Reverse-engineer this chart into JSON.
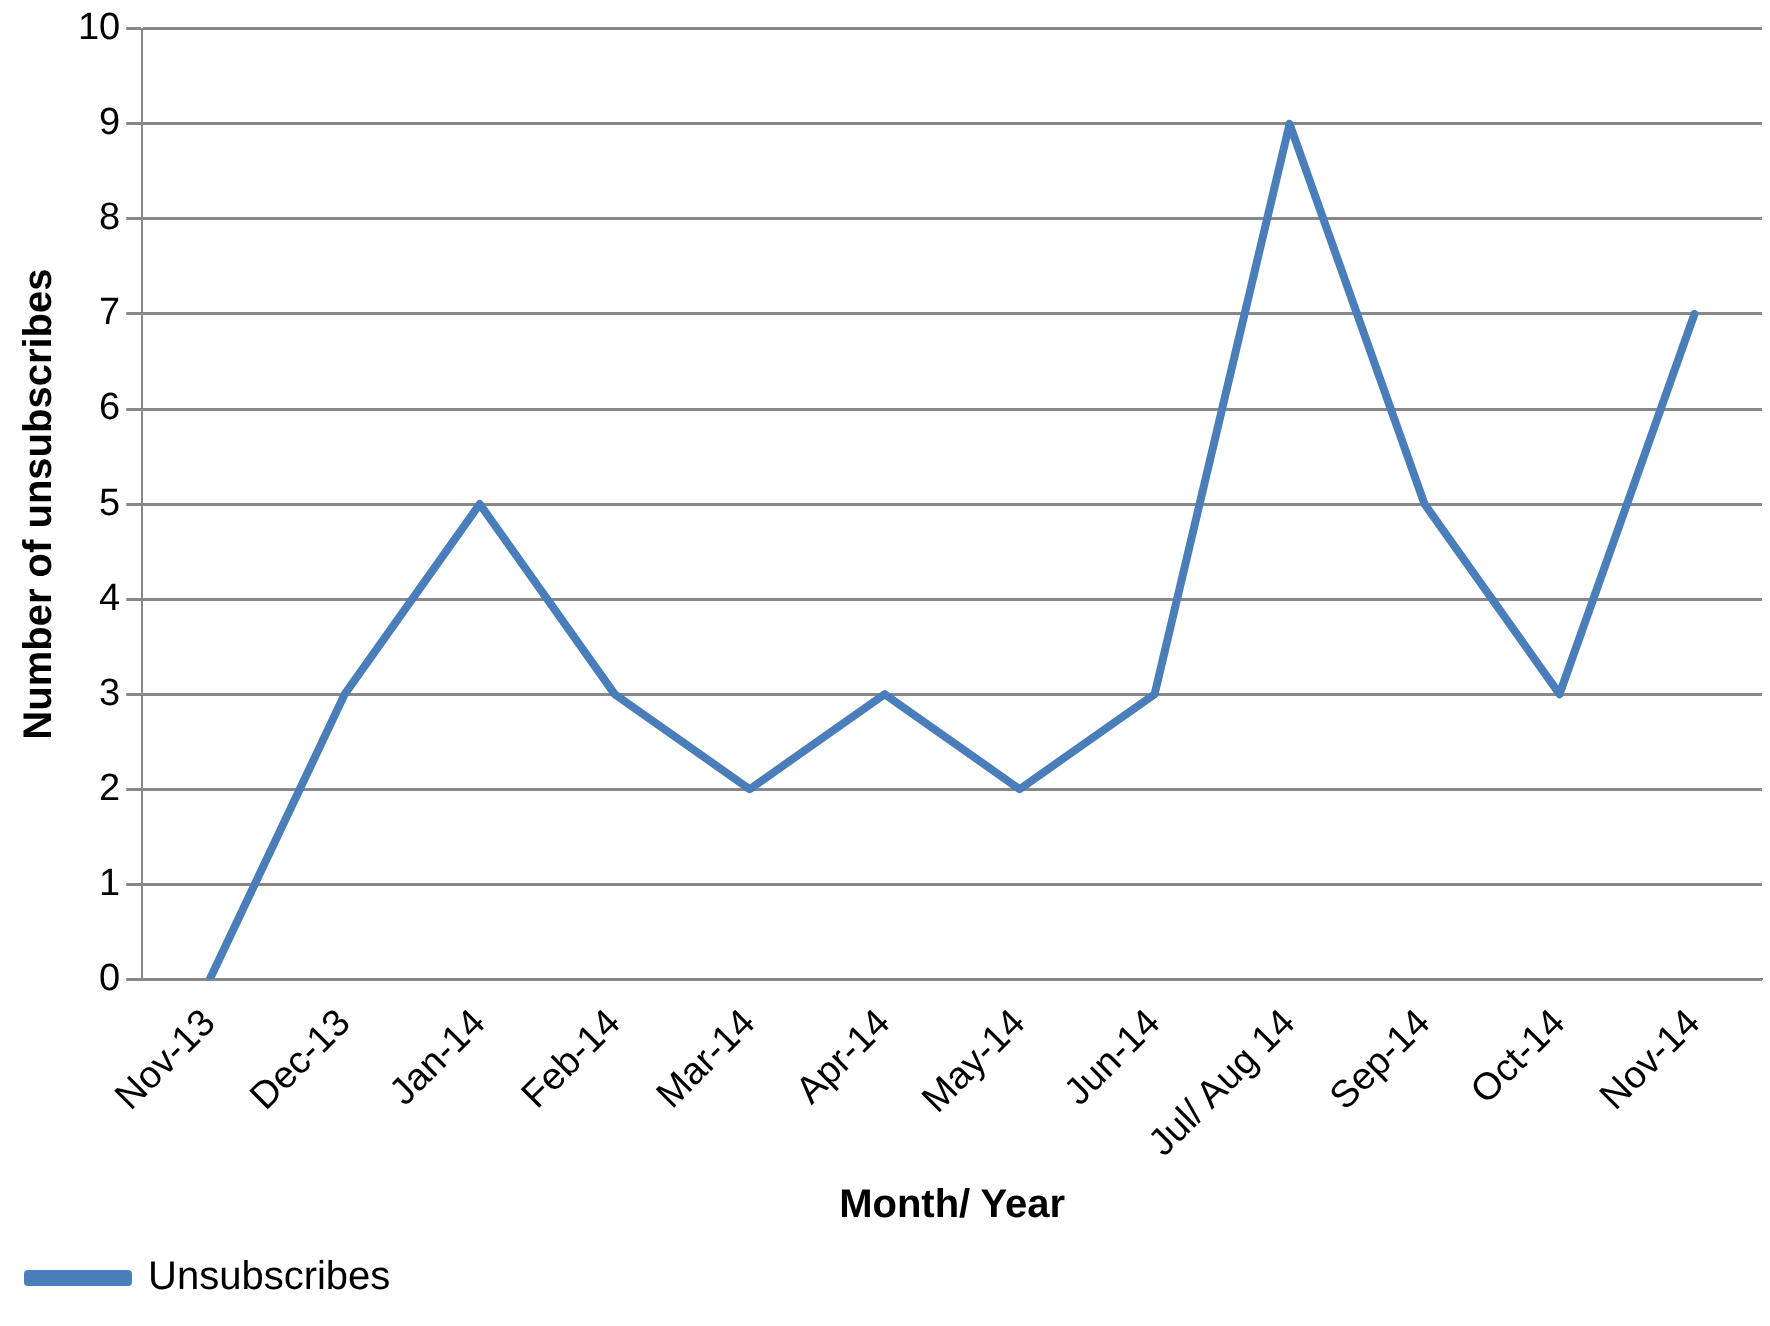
{
  "chart_data": {
    "type": "line",
    "xlabel": "Month/ Year",
    "ylabel": "Number of unsubscribes",
    "categories": [
      "Nov-13",
      "Dec-13",
      "Jan-14",
      "Feb-14",
      "Mar-14",
      "Apr-14",
      "May-14",
      "Jun-14",
      "Jul/ Aug 14",
      "Sep-14",
      "Oct-14",
      "Nov-14"
    ],
    "series": [
      {
        "name": "Unsubscribes",
        "color": "#4a7ebb",
        "values": [
          0,
          3,
          5,
          3,
          2,
          3,
          2,
          3,
          9,
          5,
          3,
          7
        ]
      }
    ],
    "ylim": [
      0,
      10
    ],
    "yticks": [
      0,
      1,
      2,
      3,
      4,
      5,
      6,
      7,
      8,
      9,
      10
    ],
    "grid": "y",
    "legend": "bottom",
    "marker": "none",
    "line_style": "solid"
  }
}
